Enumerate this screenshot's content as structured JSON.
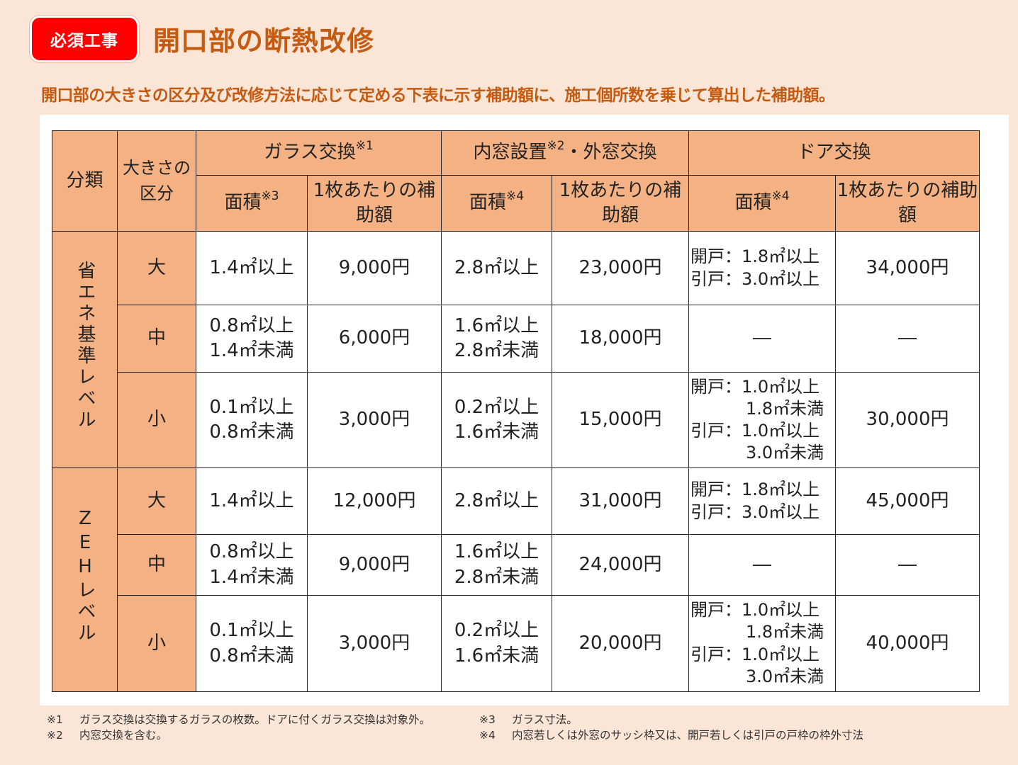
{
  "header": {
    "badge": "必須工事",
    "title": "開口部の断熱改修",
    "subtitle": "開口部の大きさの区分及び改修方法に応じて定める下表に示す補助額に、施工個所数を乗じて算出した補助額。"
  },
  "colors": {
    "badge_bg": "#ff0000",
    "title_color": "#c55a11",
    "header_cell_bg": "#f4b183",
    "page_bg": "#fbe5d6"
  },
  "table": {
    "col_category": "分類",
    "col_size": "大きさの区分",
    "group_glass": "ガラス交換",
    "group_glass_note": "※1",
    "group_window": "内窓設置",
    "group_window_note": "※2",
    "group_window_rest": "・外窓交換",
    "group_door": "ドア交換",
    "sub_area": "面積",
    "sub_area_glass_note": "※3",
    "sub_area_note": "※4",
    "sub_amount": "1枚あたりの補助額",
    "categories": [
      {
        "name": "省エネ基準レベル",
        "rows": [
          {
            "size": "大",
            "glass_area": "1.4㎡以上",
            "glass_amount": "9,000円",
            "window_area": "2.8㎡以上",
            "window_amount": "23,000円",
            "door_area": [
              "開戸：1.8㎡以上",
              "引戸：3.0㎡以上"
            ],
            "door_amount": "34,000円"
          },
          {
            "size": "中",
            "glass_area": [
              "0.8㎡以上",
              "1.4㎡未満"
            ],
            "glass_amount": "6,000円",
            "window_area": [
              "1.6㎡以上",
              "2.8㎡未満"
            ],
            "window_amount": "18,000円",
            "door_area": "―",
            "door_amount": "―"
          },
          {
            "size": "小",
            "glass_area": [
              "0.1㎡以上",
              "0.8㎡未満"
            ],
            "glass_amount": "3,000円",
            "window_area": [
              "0.2㎡以上",
              "1.6㎡未満"
            ],
            "window_amount": "15,000円",
            "door_area": [
              "開戸：1.0㎡以上",
              "1.8㎡未満",
              "引戸：1.0㎡以上",
              "3.0㎡未満"
            ],
            "door_amount": "30,000円"
          }
        ]
      },
      {
        "name": "ZEHレベル",
        "rows": [
          {
            "size": "大",
            "glass_area": "1.4㎡以上",
            "glass_amount": "12,000円",
            "window_area": "2.8㎡以上",
            "window_amount": "31,000円",
            "door_area": [
              "開戸：1.8㎡以上",
              "引戸：3.0㎡以上"
            ],
            "door_amount": "45,000円"
          },
          {
            "size": "中",
            "glass_area": [
              "0.8㎡以上",
              "1.4㎡未満"
            ],
            "glass_amount": "9,000円",
            "window_area": [
              "1.6㎡以上",
              "2.8㎡未満"
            ],
            "window_amount": "24,000円",
            "door_area": "―",
            "door_amount": "―"
          },
          {
            "size": "小",
            "glass_area": [
              "0.1㎡以上",
              "0.8㎡未満"
            ],
            "glass_amount": "3,000円",
            "window_area": [
              "0.2㎡以上",
              "1.6㎡未満"
            ],
            "window_amount": "20,000円",
            "door_area": [
              "開戸：1.0㎡以上",
              "1.8㎡未満",
              "引戸：1.0㎡以上",
              "3.0㎡未満"
            ],
            "door_amount": "40,000円"
          }
        ]
      }
    ]
  },
  "notes": [
    {
      "key": "※1",
      "text": "ガラス交換は交換するガラスの枚数。ドアに付くガラス交換は対象外。"
    },
    {
      "key": "※2",
      "text": "内窓交換を含む。"
    },
    {
      "key": "※3",
      "text": "ガラス寸法。"
    },
    {
      "key": "※4",
      "text": "内窓若しくは外窓のサッシ枠又は、開戸若しくは引戸の戸枠の枠外寸法"
    }
  ]
}
